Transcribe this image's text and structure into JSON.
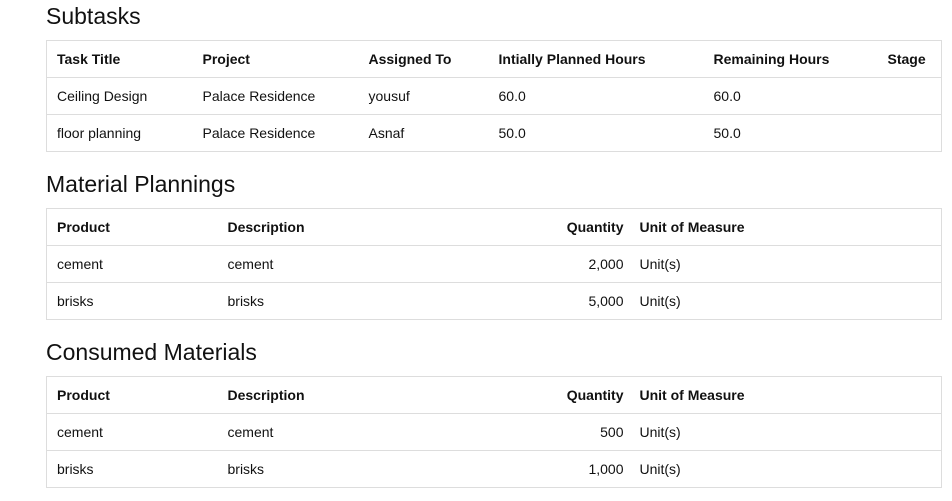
{
  "subtasks": {
    "title": "Subtasks",
    "columns": [
      "Task Title",
      "Project",
      "Assigned To",
      "Intially Planned Hours",
      "Remaining Hours",
      "Stage"
    ],
    "rows": [
      [
        "Ceiling Design",
        "Palace Residence",
        "yousuf",
        "60.0",
        "60.0",
        ""
      ],
      [
        "floor planning",
        "Palace Residence",
        "Asnaf",
        "50.0",
        "50.0",
        ""
      ]
    ]
  },
  "material_plannings": {
    "title": "Material Plannings",
    "columns": [
      "Product",
      "Description",
      "Quantity",
      "Unit of Measure"
    ],
    "rows": [
      [
        "cement",
        "cement",
        "2,000",
        "Unit(s)"
      ],
      [
        "brisks",
        "brisks",
        "5,000",
        "Unit(s)"
      ]
    ]
  },
  "consumed_materials": {
    "title": "Consumed Materials",
    "columns": [
      "Product",
      "Description",
      "Quantity",
      "Unit of Measure"
    ],
    "rows": [
      [
        "cement",
        "cement",
        "500",
        "Unit(s)"
      ],
      [
        "brisks",
        "brisks",
        "1,000",
        "Unit(s)"
      ]
    ]
  }
}
